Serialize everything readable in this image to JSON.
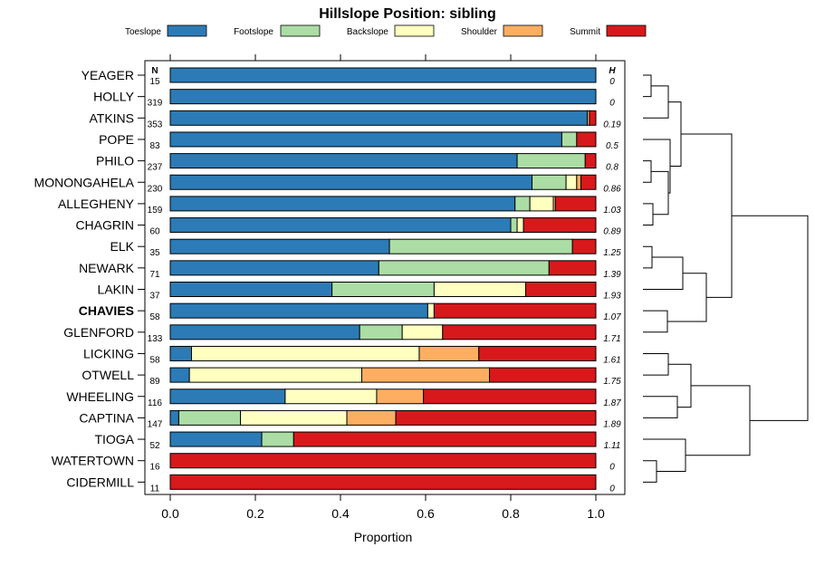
{
  "chart_data": {
    "type": "bar",
    "orientation": "horizontal",
    "stacked": true,
    "title": "Hillslope Position: sibling",
    "xlabel": "Proportion",
    "ylabel": "",
    "xlim": [
      0,
      1
    ],
    "x_ticks": [
      "0.0",
      "0.2",
      "0.4",
      "0.6",
      "0.8",
      "1.0"
    ],
    "x_tick_values": [
      0,
      0.2,
      0.4,
      0.6,
      0.8,
      1.0
    ],
    "n_header": "N",
    "h_header": "H",
    "highlight": "CHAVIES",
    "legend_placement": "top",
    "legend": [
      {
        "name": "Toeslope",
        "color": "#2C7BB6"
      },
      {
        "name": "Footslope",
        "color": "#ABDDA4"
      },
      {
        "name": "Backslope",
        "color": "#FFFFBF"
      },
      {
        "name": "Shoulder",
        "color": "#FDAE61"
      },
      {
        "name": "Summit",
        "color": "#D7191C"
      }
    ],
    "categories": [
      "YEAGER",
      "HOLLY",
      "ATKINS",
      "POPE",
      "PHILO",
      "MONONGAHELA",
      "ALLEGHENY",
      "CHAGRIN",
      "ELK",
      "NEWARK",
      "LAKIN",
      "CHAVIES",
      "GLENFORD",
      "LICKING",
      "OTWELL",
      "WHEELING",
      "CAPTINA",
      "TIOGA",
      "WATERTOWN",
      "CIDERMILL"
    ],
    "n": [
      "15",
      "319",
      "353",
      "83",
      "237",
      "230",
      "159",
      "60",
      "35",
      "71",
      "37",
      "58",
      "133",
      "58",
      "89",
      "116",
      "147",
      "52",
      "16",
      "11"
    ],
    "h": [
      "0",
      "0",
      "0.19",
      "0.5",
      "0.8",
      "0.86",
      "1.03",
      "0.89",
      "1.25",
      "1.39",
      "1.93",
      "1.07",
      "1.71",
      "1.61",
      "1.75",
      "1.87",
      "1.89",
      "1.11",
      "0",
      "0"
    ],
    "series": [
      {
        "name": "Toeslope",
        "values": [
          1.0,
          1.0,
          0.98,
          0.92,
          0.815,
          0.85,
          0.81,
          0.8,
          0.515,
          0.49,
          0.38,
          0.605,
          0.445,
          0.05,
          0.045,
          0.27,
          0.02,
          0.215,
          0,
          0
        ]
      },
      {
        "name": "Footslope",
        "values": [
          0,
          0,
          0,
          0.035,
          0.16,
          0.08,
          0.035,
          0.015,
          0.43,
          0.4,
          0.24,
          0,
          0.1,
          0,
          0,
          0,
          0.145,
          0.075,
          0,
          0
        ]
      },
      {
        "name": "Backslope",
        "values": [
          0,
          0,
          0,
          0,
          0,
          0.025,
          0.055,
          0.015,
          0,
          0,
          0.215,
          0.015,
          0.095,
          0.535,
          0.405,
          0.215,
          0.25,
          0,
          0,
          0
        ]
      },
      {
        "name": "Shoulder",
        "values": [
          0,
          0,
          0.005,
          0,
          0,
          0.01,
          0.005,
          0,
          0,
          0,
          0,
          0,
          0,
          0.14,
          0.3,
          0.11,
          0.115,
          0,
          0,
          0
        ]
      },
      {
        "name": "Summit",
        "values": [
          0,
          0,
          0.015,
          0.045,
          0.025,
          0.035,
          0.095,
          0.17,
          0.055,
          0.11,
          0.165,
          0.38,
          0.36,
          0.275,
          0.25,
          0.405,
          0.47,
          0.71,
          1.0,
          1.0
        ]
      }
    ]
  }
}
